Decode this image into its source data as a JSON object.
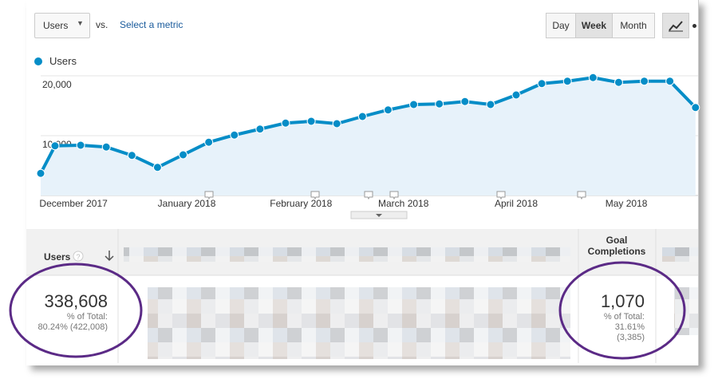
{
  "controls": {
    "metric": "Users",
    "vs": "vs.",
    "select_metric": "Select a metric",
    "periods": [
      "Day",
      "Week",
      "Month"
    ]
  },
  "chart_data": {
    "type": "line",
    "x": [
      -0.56,
      0,
      1,
      2,
      3,
      4,
      5,
      6,
      7,
      8,
      9,
      10,
      11,
      12,
      13,
      14,
      15,
      16,
      17,
      18,
      19,
      20,
      21,
      22,
      23,
      24,
      25
    ],
    "xlim": [
      -0.56,
      25.1
    ],
    "xticks": [
      {
        "value": 0.72,
        "label": "December 2017"
      },
      {
        "value": 5.14,
        "label": "January 2018"
      },
      {
        "value": 9.6,
        "label": "February 2018"
      },
      {
        "value": 13.6,
        "label": "March 2018"
      },
      {
        "value": 18.0,
        "label": "April 2018"
      },
      {
        "value": 22.3,
        "label": "May 2018"
      }
    ],
    "ylim": [
      0,
      20000
    ],
    "yticks": [
      {
        "value": 10000,
        "label": "10,000"
      },
      {
        "value": 20000,
        "label": "20,000"
      }
    ],
    "grid": true,
    "series": [
      {
        "name": "Users",
        "color": "#058dc7",
        "values": [
          3700,
          8300,
          8400,
          8100,
          6700,
          4700,
          6800,
          8900,
          10100,
          11100,
          12100,
          12400,
          12000,
          13200,
          14300,
          15200,
          15300,
          15700,
          15200,
          16800,
          18700,
          19100,
          19700,
          18900,
          19100,
          19100,
          14700
        ]
      }
    ]
  },
  "table": {
    "headers": [
      "Users",
      "Goal Completions"
    ],
    "cells": [
      {
        "value": "338,608",
        "share_label": "% of Total:",
        "share": "80.24% (422,008)"
      },
      {
        "value": "1,070",
        "share_label": "% of Total:",
        "share": "31.61%",
        "total": "(3,385)"
      }
    ]
  }
}
